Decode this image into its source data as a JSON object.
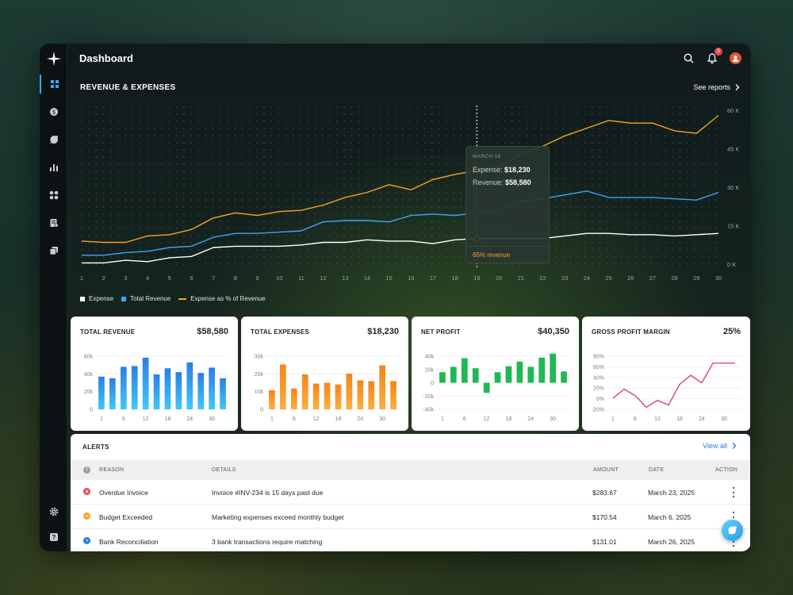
{
  "topbar": {
    "title": "Dashboard",
    "notification_count": "3"
  },
  "main": {
    "section_title": "REVENUE & EXPENSES",
    "see_reports": "See reports",
    "tooltip": {
      "date": "MARCH 19",
      "expense_label": "Expense:",
      "expense_value": "$18,230",
      "revenue_label": "Revenue:",
      "revenue_value": "$58,580",
      "footer": "65% revenue"
    },
    "legend": [
      "Expense",
      "Total Revenue",
      "Expense as % of Revenue"
    ],
    "colors": {
      "expense": "#ffffff",
      "revenue": "#3fa4f5",
      "pct": "#f7a325"
    }
  },
  "cards": [
    {
      "title": "TOTAL REVENUE",
      "value": "$58,580"
    },
    {
      "title": "TOTAL EXPENSES",
      "value": "$18,230"
    },
    {
      "title": "NET PROFIT",
      "value": "$40,350"
    },
    {
      "title": "GROSS PROFIT MARGIN",
      "value": "25%"
    }
  ],
  "alerts": {
    "title": "ALERTS",
    "view_all": "View all",
    "columns": [
      "REASON",
      "DETAILS",
      "AMOUNT",
      "DATE",
      "ACTION"
    ],
    "rows": [
      {
        "reason": "Overdue Invoice",
        "details": "Invoice #INV-234 is 15 days past due",
        "amount": "$283.67",
        "date": "March 23, 2025",
        "status_color": "#e5484d"
      },
      {
        "reason": "Budget Exceeded",
        "details": "Marketing expenses exceed monthly budget",
        "amount": "$170.54",
        "date": "March 6, 2025",
        "status_color": "#f7a325"
      },
      {
        "reason": "Bank Reconciliation",
        "details": "3 bank transactions require matching",
        "amount": "$131.01",
        "date": "March 26, 2025",
        "status_color": "#2a7de1"
      }
    ]
  },
  "chart_data": [
    {
      "type": "line",
      "title": "REVENUE & EXPENSES",
      "x": [
        1,
        2,
        3,
        4,
        5,
        6,
        7,
        8,
        9,
        10,
        11,
        12,
        13,
        14,
        15,
        16,
        17,
        18,
        19,
        20,
        21,
        22,
        23,
        24,
        25,
        26,
        27,
        28,
        29,
        30
      ],
      "ylim": [
        0,
        60
      ],
      "yticks": [
        "0 K",
        "15 K",
        "30 K",
        "45 K",
        "60 K"
      ],
      "series": [
        {
          "name": "Expense",
          "color": "#ffffff",
          "values": [
            0.5,
            0.5,
            1.5,
            1,
            2.5,
            3,
            6.5,
            7,
            7,
            7,
            7.5,
            8.5,
            8.5,
            9.5,
            9,
            9,
            8,
            9.5,
            10,
            10,
            10,
            10,
            11,
            12,
            12,
            11.5,
            11.5,
            11,
            11.5,
            12
          ]
        },
        {
          "name": "Total Revenue",
          "color": "#3fa4f5",
          "values": [
            3.5,
            3.5,
            4.5,
            5,
            6.5,
            7,
            10.5,
            12,
            12,
            12.5,
            13,
            16.5,
            17,
            17,
            16.5,
            19,
            19.5,
            19,
            20,
            20.5,
            24.5,
            25.5,
            27,
            28.5,
            26,
            26,
            26,
            25.5,
            25,
            28
          ]
        },
        {
          "name": "Expense as % of Revenue",
          "color": "#f7a325",
          "values": [
            9,
            8.5,
            8.5,
            11,
            11.5,
            13.5,
            18,
            20,
            19,
            20.5,
            21,
            23,
            26,
            28,
            31,
            29,
            33,
            35,
            36.5,
            38,
            43,
            46,
            50,
            53,
            56,
            55,
            55,
            52,
            51,
            58
          ]
        }
      ]
    },
    {
      "type": "bar",
      "title": "TOTAL REVENUE",
      "ylim": [
        0,
        70000
      ],
      "yticks": [
        "0",
        "20k",
        "40k",
        "60k"
      ],
      "xticks": [
        "1",
        "6",
        "12",
        "18",
        "24",
        "30"
      ],
      "values": [
        43000,
        41000,
        56000,
        57000,
        68000,
        46000,
        54000,
        49000,
        62000,
        48000,
        55000,
        41000
      ]
    },
    {
      "type": "bar",
      "title": "TOTAL EXPENSES",
      "ylim": [
        0,
        32000
      ],
      "yticks": [
        "0",
        "10k",
        "20k",
        "30k"
      ],
      "xticks": [
        "1",
        "6",
        "12",
        "18",
        "24",
        "30"
      ],
      "values": [
        11500,
        27000,
        12500,
        21000,
        15500,
        16000,
        15000,
        21500,
        17500,
        17000,
        26500,
        17000
      ]
    },
    {
      "type": "bar",
      "title": "NET PROFIT",
      "ylim": [
        -40000,
        40000
      ],
      "yticks": [
        "-40k",
        "-20k",
        "0",
        "20k",
        "40k"
      ],
      "xticks": [
        "1",
        "6",
        "12",
        "18",
        "24",
        "30"
      ],
      "values": [
        16000,
        24000,
        37000,
        22000,
        -15000,
        16000,
        25000,
        32000,
        24000,
        38000,
        44000,
        17000
      ]
    },
    {
      "type": "line",
      "title": "GROSS PROFIT MARGIN",
      "ylim": [
        -20,
        80
      ],
      "yticks": [
        "-20%",
        "0%",
        "20%",
        "40%",
        "60%",
        "80%"
      ],
      "xticks": [
        "1",
        "6",
        "12",
        "18",
        "24",
        "30"
      ],
      "values": [
        1,
        18,
        6,
        -16,
        -3,
        -12,
        27,
        44,
        30,
        67,
        67,
        67
      ]
    }
  ]
}
